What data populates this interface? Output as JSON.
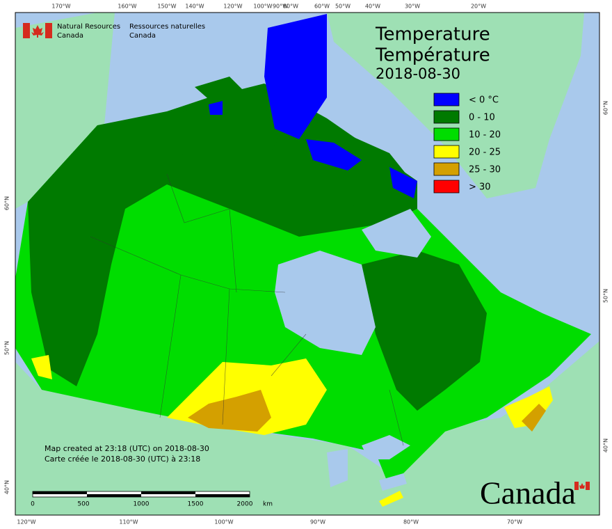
{
  "header": {
    "org_en": [
      "Natural Resources",
      "Canada"
    ],
    "org_fr": [
      "Ressources naturelles",
      "Canada"
    ]
  },
  "title": [
    "Temperature",
    "Température",
    "2018-08-30"
  ],
  "legend": [
    {
      "label": "< 0 °C",
      "color": "#0000ff"
    },
    {
      "label": "0 - 10",
      "color": "#007a00"
    },
    {
      "label": "10 - 20",
      "color": "#00dd00"
    },
    {
      "label": "20 - 25",
      "color": "#ffff00"
    },
    {
      "label": "25 - 30",
      "color": "#d4a000"
    },
    {
      "label": "> 30",
      "color": "#ff0000"
    }
  ],
  "notes": [
    "Map created at 23:18 (UTC) on 2018-08-30",
    "Carte créée le 2018-08-30 (UTC) à 23:18"
  ],
  "scale_bar": [
    "0",
    "500",
    "1000",
    "1500",
    "2000",
    "km"
  ],
  "wordmark": "Canada",
  "graticule": {
    "top": [
      "170°W",
      "160°W",
      "150°W",
      "140°W",
      "120°W",
      "100°W",
      "90°W",
      "80°W",
      "60°W",
      "50°W",
      "40°W",
      "30°W",
      "20°W"
    ],
    "bottom": [
      "120°W",
      "110°W",
      "100°W",
      "90°W",
      "80°W",
      "70°W"
    ],
    "left": [
      "60°N",
      "50°N",
      "40°N"
    ],
    "right": [
      "60°N",
      "50°N",
      "40°N"
    ]
  }
}
